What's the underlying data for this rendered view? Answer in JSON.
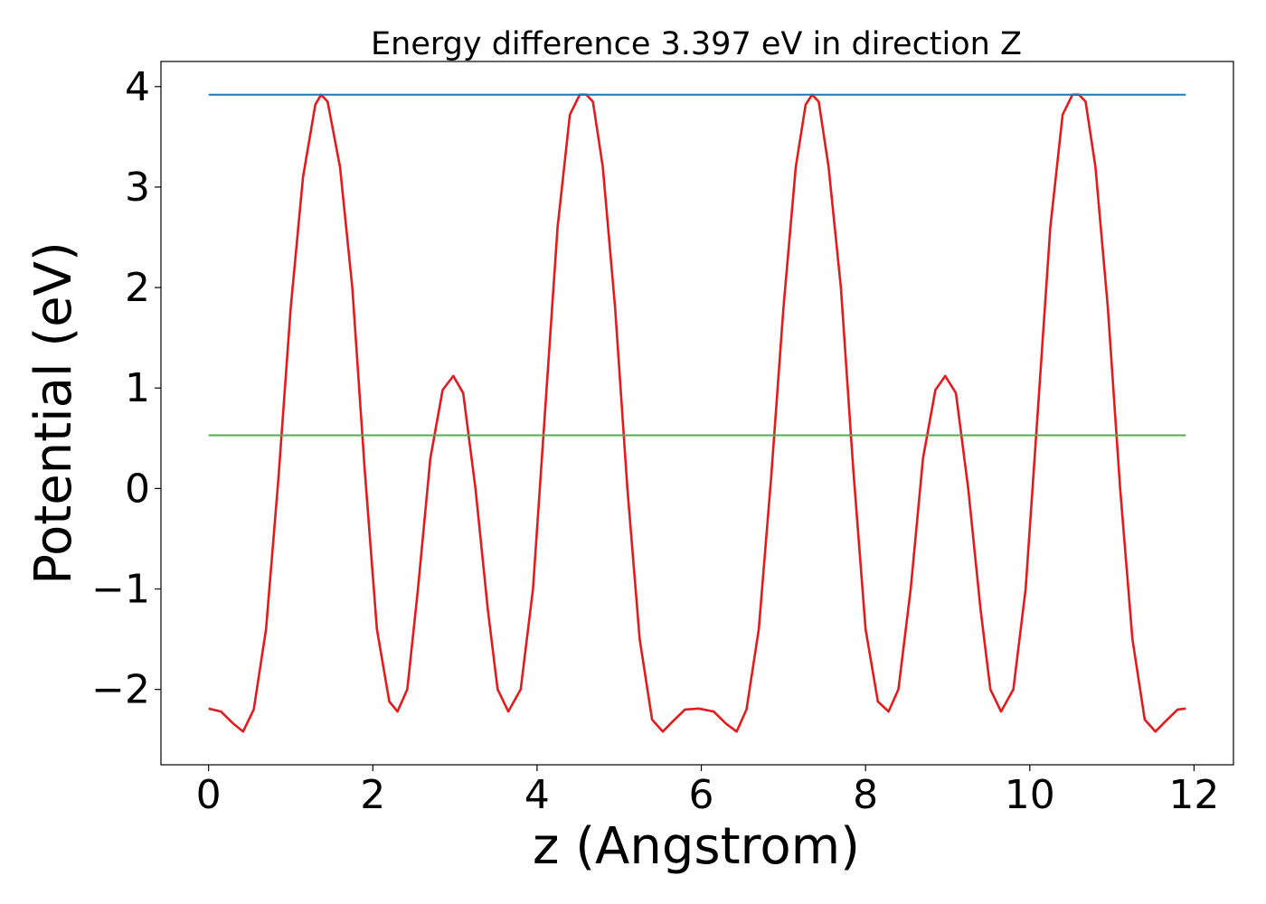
{
  "chart_data": {
    "type": "line",
    "title": "Energy difference 3.397 eV in direction Z",
    "xlabel": "z (Angstrom)",
    "ylabel": "Potential (eV)",
    "xlim": [
      -0.58,
      12.48
    ],
    "ylim": [
      -2.75,
      4.25
    ],
    "x_ticks": [
      0,
      2,
      4,
      6,
      8,
      10,
      12
    ],
    "x_tick_labels": [
      "0",
      "2",
      "4",
      "6",
      "8",
      "10",
      "12"
    ],
    "y_ticks": [
      -2,
      -1,
      0,
      1,
      2,
      3,
      4
    ],
    "y_tick_labels": [
      "−2",
      "−1",
      "0",
      "1",
      "2",
      "3",
      "4"
    ],
    "grid": false,
    "legend": "none",
    "series": [
      {
        "color": "#e41a1c",
        "x": [
          0.0,
          0.15,
          0.3,
          0.42,
          0.55,
          0.7,
          0.85,
          1.0,
          1.15,
          1.3,
          1.37,
          1.45,
          1.6,
          1.75,
          1.9,
          2.05,
          2.2,
          2.3,
          2.42,
          2.55,
          2.7,
          2.85,
          2.98,
          3.1,
          3.25,
          3.4,
          3.52,
          3.65,
          3.8,
          3.95,
          4.1,
          4.25,
          4.4,
          4.52,
          4.6,
          4.68,
          4.8,
          4.95,
          5.1,
          5.25,
          5.4,
          5.53,
          5.65,
          5.8,
          5.97,
          6.15,
          6.3,
          6.43,
          6.55,
          6.7,
          6.85,
          7.0,
          7.15,
          7.27,
          7.35,
          7.43,
          7.55,
          7.7,
          7.85,
          8.0,
          8.15,
          8.28,
          8.4,
          8.55,
          8.7,
          8.85,
          8.97,
          9.1,
          9.25,
          9.4,
          9.52,
          9.65,
          9.8,
          9.95,
          10.1,
          10.25,
          10.4,
          10.52,
          10.6,
          10.68,
          10.8,
          10.95,
          11.1,
          11.25,
          11.4,
          11.53,
          11.65,
          11.8,
          11.9
        ],
        "y": [
          -2.19,
          -2.22,
          -2.34,
          -2.42,
          -2.2,
          -1.4,
          0.1,
          1.8,
          3.1,
          3.82,
          3.92,
          3.85,
          3.2,
          2.0,
          0.2,
          -1.4,
          -2.12,
          -2.22,
          -2.0,
          -1.0,
          0.3,
          0.98,
          1.12,
          0.95,
          0.0,
          -1.2,
          -2.0,
          -2.22,
          -2.0,
          -1.0,
          0.8,
          2.6,
          3.72,
          3.92,
          3.92,
          3.85,
          3.2,
          1.8,
          0.0,
          -1.5,
          -2.3,
          -2.42,
          -2.32,
          -2.2,
          -2.19,
          -2.22,
          -2.34,
          -2.42,
          -2.2,
          -1.4,
          0.1,
          1.8,
          3.2,
          3.82,
          3.92,
          3.85,
          3.2,
          2.0,
          0.2,
          -1.4,
          -2.12,
          -2.22,
          -2.0,
          -1.0,
          0.3,
          0.98,
          1.12,
          0.95,
          0.0,
          -1.2,
          -2.0,
          -2.22,
          -2.0,
          -1.0,
          0.8,
          2.6,
          3.72,
          3.92,
          3.92,
          3.85,
          3.2,
          1.8,
          0.0,
          -1.5,
          -2.3,
          -2.42,
          -2.32,
          -2.2,
          -2.19
        ]
      },
      {
        "color": "#1f77b4",
        "x": [
          0.0,
          11.9
        ],
        "y": [
          3.92,
          3.92
        ]
      },
      {
        "color": "#4daf4a",
        "x": [
          0.0,
          11.9
        ],
        "y": [
          0.53,
          0.53
        ]
      }
    ]
  }
}
